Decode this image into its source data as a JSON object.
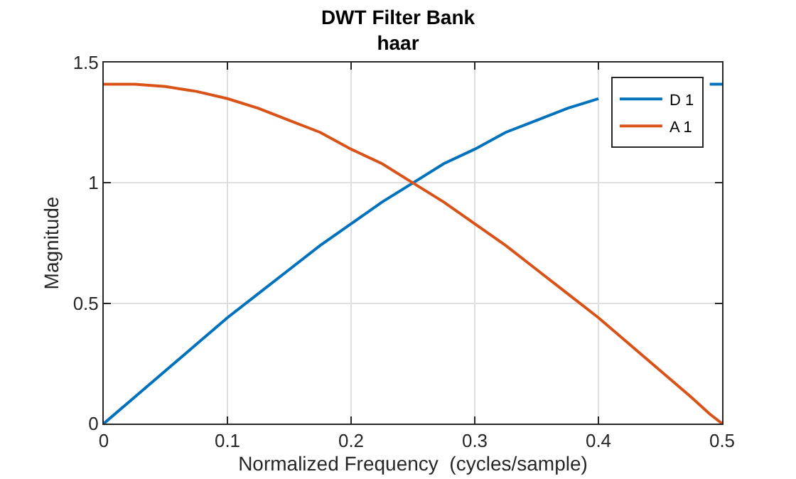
{
  "chart_data": {
    "type": "line",
    "title": "DWT Filter Bank",
    "subtitle": "haar",
    "xlabel": "Normalized Frequency  (cycles/sample)",
    "ylabel": "Magnitude",
    "x": [
      0,
      0.025,
      0.05,
      0.075,
      0.1,
      0.125,
      0.15,
      0.175,
      0.2,
      0.225,
      0.25,
      0.275,
      0.3,
      0.325,
      0.35,
      0.375,
      0.4,
      0.425,
      0.45,
      0.475,
      0.49,
      0.5
    ],
    "series": [
      {
        "name": "D 1",
        "color": "#0072bd",
        "values": [
          0,
          0.11,
          0.22,
          0.33,
          0.44,
          0.54,
          0.64,
          0.74,
          0.83,
          0.92,
          1.0,
          1.08,
          1.14,
          1.21,
          1.26,
          1.31,
          1.35,
          null,
          null,
          null,
          1.41,
          1.41
        ]
      },
      {
        "name": "A 1",
        "color": "#d95319",
        "values": [
          1.41,
          1.41,
          1.4,
          1.38,
          1.35,
          1.31,
          1.26,
          1.21,
          1.14,
          1.08,
          1.0,
          0.92,
          0.83,
          0.74,
          0.64,
          0.54,
          0.44,
          0.33,
          0.22,
          0.11,
          0.04,
          0
        ]
      }
    ],
    "xlim": [
      0,
      0.5
    ],
    "xticks": [
      0,
      0.1,
      0.2,
      0.3,
      0.4,
      0.5
    ],
    "ylim": [
      0,
      1.5
    ],
    "yticks": [
      0,
      0.5,
      1,
      1.5
    ],
    "grid": true,
    "legend": "top right",
    "marker": "none",
    "line_style": "solid"
  }
}
